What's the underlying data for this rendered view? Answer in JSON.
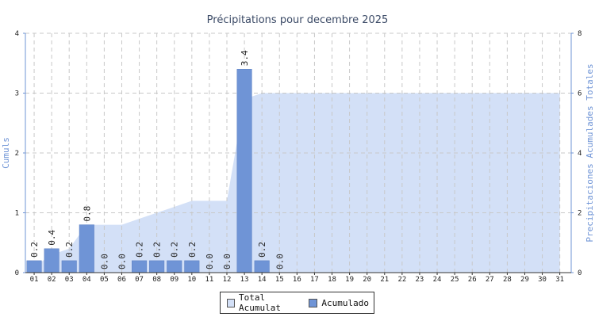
{
  "chart_data": {
    "type": "bar",
    "title": "Précipitations pour decembre 2025",
    "ylabel_left": "Cumuls",
    "ylabel_right": "Precipitaciones Acumulades Totales",
    "ylim_left": [
      0,
      4
    ],
    "ylim_right": [
      0,
      8
    ],
    "yticks_left": [
      "0",
      "1",
      "2",
      "3",
      "4"
    ],
    "yticks_right": [
      "0",
      "2",
      "4",
      "6",
      "8"
    ],
    "categories": [
      "01",
      "02",
      "03",
      "04",
      "05",
      "06",
      "07",
      "08",
      "09",
      "10",
      "11",
      "12",
      "13",
      "14",
      "15",
      "16",
      "17",
      "18",
      "19",
      "20",
      "21",
      "22",
      "23",
      "24",
      "25",
      "26",
      "27",
      "28",
      "29",
      "30",
      "31"
    ],
    "series": [
      {
        "name": "Acumulado",
        "type": "bar",
        "axis": "left",
        "color": "#6f94d6",
        "values": [
          0.2,
          0.4,
          0.2,
          0.8,
          0.0,
          0.0,
          0.2,
          0.2,
          0.2,
          0.2,
          0.0,
          0.0,
          3.4,
          0.2,
          0.0,
          null,
          null,
          null,
          null,
          null,
          null,
          null,
          null,
          null,
          null,
          null,
          null,
          null,
          null,
          null,
          null
        ],
        "labels": [
          "0.2",
          "0.4",
          "0.2",
          "0.8",
          "0.0",
          "0.0",
          "0.2",
          "0.2",
          "0.2",
          "0.2",
          "0.0",
          "0.0",
          "3.4",
          "0.2",
          "0.0"
        ]
      },
      {
        "name": "Total Acumulat",
        "type": "area",
        "axis": "right",
        "color": "#d3e0f7",
        "values": [
          0.2,
          0.6,
          0.8,
          1.6,
          1.6,
          1.6,
          1.8,
          2.0,
          2.2,
          2.4,
          2.4,
          2.4,
          5.8,
          6.0,
          6.0,
          6.0,
          6.0,
          6.0,
          6.0,
          6.0,
          6.0,
          6.0,
          6.0,
          6.0,
          6.0,
          6.0,
          6.0,
          6.0,
          6.0,
          6.0,
          6.0
        ]
      }
    ],
    "grid": true,
    "legend": "bottom-center"
  },
  "legend": {
    "total_label": "Total Acumulat",
    "bar_label": "Acumulado"
  }
}
